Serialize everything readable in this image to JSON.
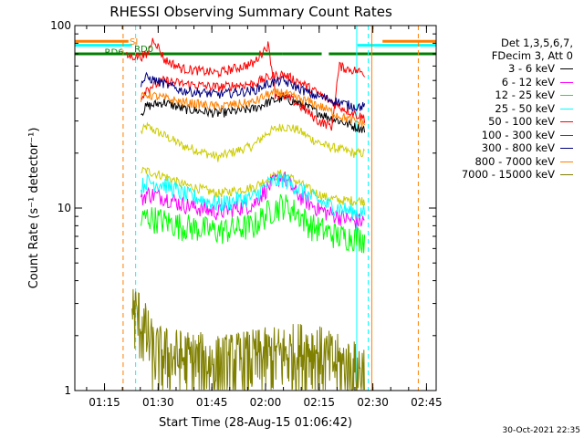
{
  "chart_data": {
    "type": "line",
    "title": "RHESSI Observing Summary Count Rates",
    "xlabel": "Start Time (28-Aug-15 01:06:42)",
    "ylabel": "Count Rate (s⁻¹ detector⁻¹)",
    "yscale": "log",
    "ylim": [
      1,
      100
    ],
    "xlim_minutes": [
      0,
      101
    ],
    "y_ticks": [
      "1",
      "10",
      "100"
    ],
    "x_ticks": [
      {
        "label": "01:15",
        "minute": 8.3
      },
      {
        "label": "01:30",
        "minute": 23.3
      },
      {
        "label": "01:45",
        "minute": 38.3
      },
      {
        "label": "02:00",
        "minute": 53.3
      },
      {
        "label": "02:15",
        "minute": 68.3
      },
      {
        "label": "02:30",
        "minute": 83.3
      },
      {
        "label": "02:45",
        "minute": 98.3
      }
    ],
    "legend_header": [
      "Det 1,3,5,6,7,",
      "FDecim 3, Att 0"
    ],
    "series": [
      {
        "name": "3 - 6 keV",
        "color": "#000000",
        "x": [
          18.5,
          20,
          25,
          30,
          40,
          50,
          54,
          58,
          62,
          66,
          70,
          74,
          78,
          81
        ],
        "y": [
          33,
          36,
          38,
          35,
          33,
          35,
          38,
          40,
          38,
          35,
          32,
          30,
          28,
          27
        ]
      },
      {
        "name": "6 - 12 keV",
        "color": "#ff00ff",
        "x": [
          18.5,
          20,
          25,
          30,
          40,
          50,
          54,
          58,
          62,
          66,
          70,
          74,
          78,
          81
        ],
        "y": [
          11,
          12,
          11.5,
          10.5,
          9.5,
          10.5,
          13,
          15,
          12,
          10.5,
          9.5,
          9,
          8.5,
          8.5
        ]
      },
      {
        "name": "12 - 25 keV",
        "color": "#00ff00",
        "x": [
          18.5,
          20,
          25,
          30,
          40,
          50,
          54,
          58,
          62,
          66,
          70,
          74,
          78,
          81
        ],
        "y": [
          8.5,
          9,
          8.5,
          8,
          7.5,
          8,
          9.5,
          10.5,
          9.5,
          8,
          7.5,
          7,
          7,
          6.8
        ]
      },
      {
        "name": "25 - 50 keV",
        "color": "#00ffff",
        "x": [
          18.5,
          20,
          25,
          30,
          40,
          50,
          54,
          58,
          62,
          66,
          70,
          74,
          78,
          81
        ],
        "y": [
          13,
          14,
          13.5,
          12,
          10.5,
          11.5,
          13.5,
          14.5,
          13,
          11.5,
          10.5,
          10,
          9.5,
          9.5
        ]
      },
      {
        "name": "50 - 100 keV",
        "color": "#ff0000",
        "x": [
          14.5,
          20,
          22,
          25,
          30,
          40,
          50,
          54,
          56,
          60,
          64,
          68,
          72,
          74,
          76,
          78,
          81
        ],
        "y": [
          68,
          68,
          85,
          65,
          58,
          55,
          62,
          78,
          42,
          40,
          35,
          30,
          28,
          60,
          58,
          57,
          55
        ]
      },
      {
        "name": "100 - 300 keV",
        "color": "#ff0000",
        "x": [
          18.5,
          20,
          25,
          30,
          40,
          50,
          54,
          58,
          62,
          66,
          70,
          74,
          78,
          81
        ],
        "y": [
          40,
          45,
          50,
          48,
          46,
          48,
          52,
          54,
          50,
          45,
          40,
          36,
          33,
          31
        ]
      },
      {
        "name": "300 - 800 keV",
        "color": "#000080",
        "x": [
          18.5,
          20,
          25,
          30,
          40,
          50,
          54,
          58,
          62,
          66,
          70,
          74,
          78,
          81
        ],
        "y": [
          48,
          52,
          48,
          44,
          42,
          44,
          48,
          50,
          46,
          42,
          40,
          38,
          36,
          36
        ]
      },
      {
        "name": "800 - 7000 keV",
        "color": "#ff8000",
        "x": [
          18.5,
          20,
          25,
          30,
          40,
          50,
          54,
          58,
          62,
          66,
          70,
          74,
          78,
          81
        ],
        "y": [
          40,
          42,
          40,
          38,
          36,
          38,
          42,
          43,
          40,
          38,
          35,
          32,
          30,
          29
        ]
      },
      {
        "name": "7000 - 15000 keV",
        "color": "#808000",
        "x": [
          16,
          18,
          22,
          30,
          40,
          50,
          60,
          66,
          70,
          74,
          78,
          81
        ],
        "y": [
          2.8,
          2.5,
          1.6,
          1.5,
          1.4,
          1.5,
          1.6,
          1.7,
          1.5,
          1.4,
          1.3,
          1.3
        ]
      }
    ],
    "extra_curves": [
      {
        "name": "yellow-band",
        "color": "#cccc00",
        "x": [
          18.5,
          20,
          25,
          30,
          40,
          50,
          54,
          58,
          62,
          66,
          70,
          74,
          78,
          81
        ],
        "y": [
          26,
          28,
          25,
          22,
          19,
          22,
          26,
          28,
          27,
          24,
          22,
          21,
          20,
          20
        ]
      },
      {
        "name": "yellow-lower",
        "color": "#cccc00",
        "x": [
          18.5,
          20,
          25,
          30,
          40,
          50,
          54,
          58,
          62,
          66,
          70,
          74,
          78,
          81
        ],
        "y": [
          16,
          16,
          15,
          13.5,
          12,
          13,
          14.5,
          15.5,
          14,
          12.5,
          11.5,
          11,
          11,
          11
        ]
      }
    ],
    "annotations": [
      {
        "text": "SI",
        "color": "#ff8000",
        "minute": 15.3,
        "value": 82
      },
      {
        "text": "RD6",
        "color": "#008000",
        "minute": 8.3,
        "value": 72
      },
      {
        "text": "RD0",
        "color": "#008000",
        "minute": 16.6,
        "value": 75
      }
    ],
    "state_bars": [
      {
        "name": "SAA-orange",
        "color": "#ff8000",
        "value": 82,
        "x1": 0,
        "x2": 15
      },
      {
        "name": "SAA-orange-2",
        "color": "#ff8000",
        "value": 82,
        "x1": 86,
        "x2": 101
      },
      {
        "name": "cyan-1",
        "color": "#00ffff",
        "value": 78,
        "x1": 0,
        "x2": 16
      },
      {
        "name": "cyan-2",
        "color": "#00ffff",
        "value": 78,
        "x1": 79,
        "x2": 101
      },
      {
        "name": "green-decim",
        "color": "#008000",
        "value": 70,
        "x1": 0,
        "x2": 58
      },
      {
        "name": "green-decim-2",
        "color": "#008000",
        "value": 70,
        "x1": 58,
        "x2": 69
      },
      {
        "name": "green-decim-3",
        "color": "#008000",
        "value": 70,
        "x1": 71,
        "x2": 101
      }
    ],
    "vertical_markers": [
      {
        "name": "orange-dash-1",
        "color": "#ff8000",
        "minute": 13.5,
        "dashed": true
      },
      {
        "name": "cyan-dash-1",
        "color": "#00ffff",
        "minute": 17.0,
        "dashed": true
      },
      {
        "name": "cyan-solid",
        "color": "#00ffff",
        "minute": 78.8,
        "dashed": false
      },
      {
        "name": "orange-solid",
        "color": "#ff8000",
        "minute": 83.0,
        "dashed": false
      },
      {
        "name": "cyan-dash-2",
        "color": "#00ffff",
        "minute": 82.0,
        "dashed": true
      },
      {
        "name": "orange-dash-2",
        "color": "#ff8000",
        "minute": 96.0,
        "dashed": true
      }
    ],
    "footer_date": "30-Oct-2021 22:35"
  }
}
